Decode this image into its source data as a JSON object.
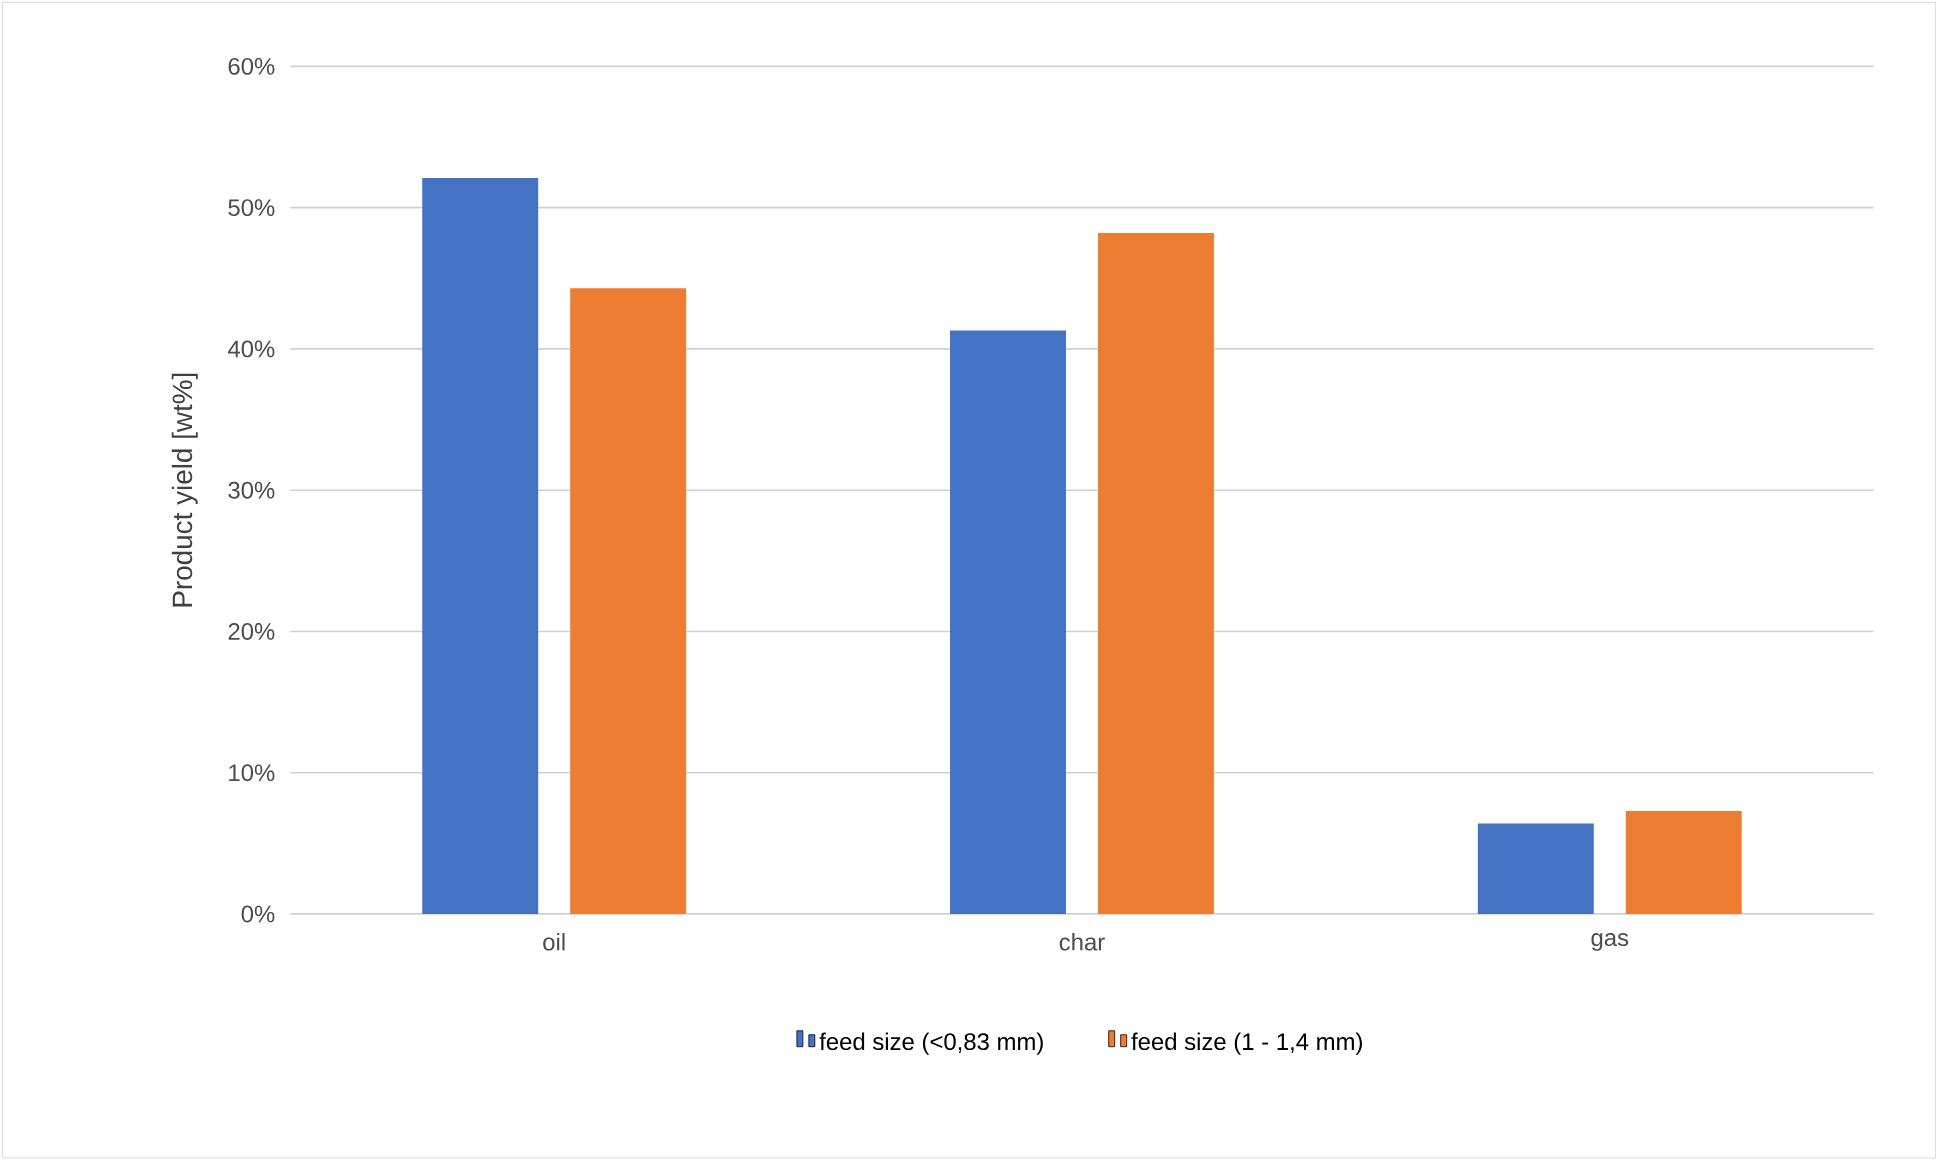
{
  "chart_data": {
    "type": "bar",
    "ylabel": "Product yield [wt%]",
    "categories": [
      "oil",
      "char",
      "gas"
    ],
    "series": [
      {
        "name": "feed size (<0,83 mm)",
        "color": "#4472c4",
        "values": [
          52.1,
          41.3,
          6.4
        ]
      },
      {
        "name": "feed size (1 - 1,4 mm)",
        "color": "#ed7d31",
        "values": [
          44.3,
          48.2,
          7.3
        ]
      }
    ],
    "ylim": [
      0,
      60
    ],
    "yticks": [
      {
        "value": 0,
        "label": "0%"
      },
      {
        "value": 10,
        "label": "10%"
      },
      {
        "value": 20,
        "label": "20%"
      },
      {
        "value": 30,
        "label": "30%"
      },
      {
        "value": 40,
        "label": "40%"
      },
      {
        "value": 50,
        "label": "50%"
      },
      {
        "value": 60,
        "label": "60%"
      }
    ],
    "grid": "y",
    "legend": "bottom"
  }
}
